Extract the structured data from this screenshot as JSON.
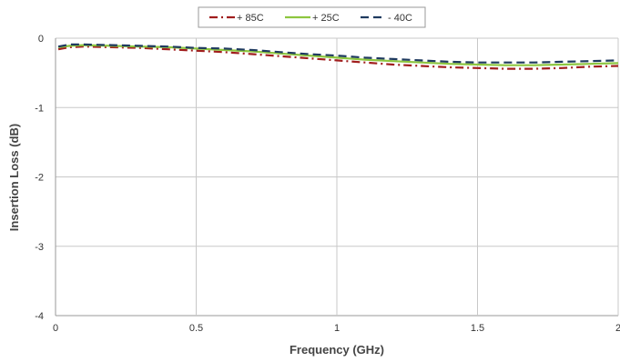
{
  "chart_data": {
    "type": "line",
    "title": "",
    "xlabel": "Frequency (GHz)",
    "ylabel": "Insertion Loss (dB)",
    "xlim": [
      0,
      2
    ],
    "ylim": [
      -4,
      0
    ],
    "x_ticks": [
      "0",
      "0.5",
      "1",
      "1.5",
      "2"
    ],
    "y_ticks": [
      "0",
      "-1",
      "-2",
      "-3",
      "-4"
    ],
    "grid": true,
    "legend_position": "top-center",
    "series": [
      {
        "name": "+ 85C",
        "color": "#a01d1d",
        "style": "dash-dot",
        "x": [
          0.01,
          0.05,
          0.1,
          0.2,
          0.3,
          0.4,
          0.5,
          0.6,
          0.7,
          0.8,
          0.9,
          1.0,
          1.1,
          1.2,
          1.3,
          1.4,
          1.5,
          1.6,
          1.7,
          1.8,
          1.9,
          2.0
        ],
        "y": [
          -0.16,
          -0.13,
          -0.12,
          -0.13,
          -0.14,
          -0.16,
          -0.18,
          -0.2,
          -0.23,
          -0.26,
          -0.29,
          -0.32,
          -0.35,
          -0.38,
          -0.4,
          -0.42,
          -0.43,
          -0.44,
          -0.44,
          -0.43,
          -0.41,
          -0.4
        ]
      },
      {
        "name": "+ 25C",
        "color": "#8dc63f",
        "style": "solid",
        "x": [
          0.01,
          0.05,
          0.1,
          0.2,
          0.3,
          0.4,
          0.5,
          0.6,
          0.7,
          0.8,
          0.9,
          1.0,
          1.1,
          1.2,
          1.3,
          1.4,
          1.5,
          1.6,
          1.7,
          1.8,
          1.9,
          2.0
        ],
        "y": [
          -0.13,
          -0.11,
          -0.1,
          -0.11,
          -0.12,
          -0.13,
          -0.15,
          -0.17,
          -0.19,
          -0.22,
          -0.25,
          -0.28,
          -0.31,
          -0.33,
          -0.35,
          -0.37,
          -0.38,
          -0.39,
          -0.39,
          -0.38,
          -0.37,
          -0.36
        ]
      },
      {
        "name": "- 40C",
        "color": "#1f3a5f",
        "style": "dashed",
        "x": [
          0.01,
          0.05,
          0.1,
          0.2,
          0.3,
          0.4,
          0.5,
          0.6,
          0.7,
          0.8,
          0.9,
          1.0,
          1.1,
          1.2,
          1.3,
          1.4,
          1.5,
          1.6,
          1.7,
          1.8,
          1.9,
          2.0
        ],
        "y": [
          -0.12,
          -0.09,
          -0.09,
          -0.1,
          -0.11,
          -0.12,
          -0.14,
          -0.15,
          -0.17,
          -0.2,
          -0.23,
          -0.25,
          -0.28,
          -0.3,
          -0.32,
          -0.34,
          -0.35,
          -0.35,
          -0.35,
          -0.34,
          -0.33,
          -0.32
        ]
      }
    ]
  }
}
